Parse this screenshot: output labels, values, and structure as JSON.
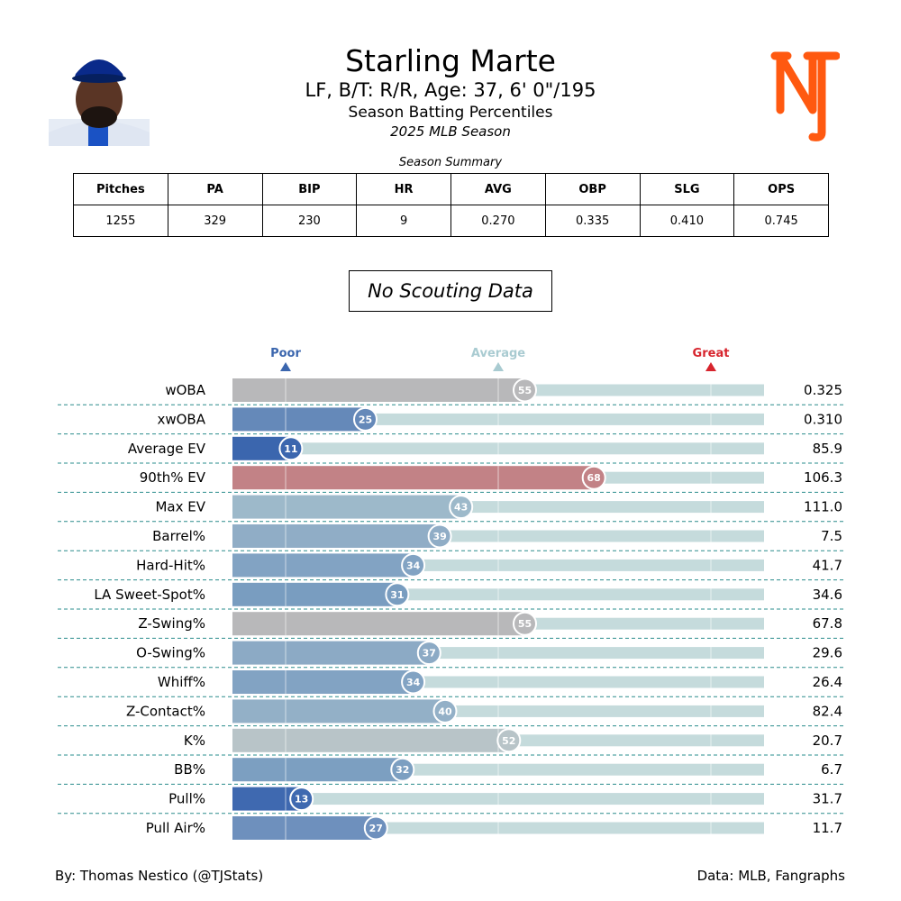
{
  "header": {
    "title": "Starling Marte",
    "subtitle": "LF, B/T: R/R, Age: 37, 6' 0\"/195",
    "subtitle2": "Season Batting Percentiles",
    "season": "2025 MLB Season"
  },
  "summary": {
    "caption": "Season Summary",
    "headers": [
      "Pitches",
      "PA",
      "BIP",
      "HR",
      "AVG",
      "OBP",
      "SLG",
      "OPS"
    ],
    "values": [
      "1255",
      "329",
      "230",
      "9",
      "0.270",
      "0.335",
      "0.410",
      "0.745"
    ]
  },
  "scouting": "No Scouting Data",
  "logo": {
    "text": "NY",
    "color": "#ff5910"
  },
  "chart_data": {
    "type": "bar",
    "orientation": "horizontal",
    "xlim": [
      0,
      100
    ],
    "markers": [
      {
        "label": "Poor",
        "at": 10,
        "color": "#3b66ae"
      },
      {
        "label": "Average",
        "at": 50,
        "color": "#a9cbd1"
      },
      {
        "label": "Great",
        "at": 90,
        "color": "#d7242d"
      }
    ],
    "track_color": "#c5dbdc",
    "rows": [
      {
        "label": "wOBA",
        "percentile": 55,
        "value": "0.325",
        "color": "#b8b8ba"
      },
      {
        "label": "xwOBA",
        "percentile": 25,
        "value": "0.310",
        "color": "#6589b9"
      },
      {
        "label": "Average EV",
        "percentile": 11,
        "value": "85.9",
        "color": "#3b66ae"
      },
      {
        "label": "90th% EV",
        "percentile": 68,
        "value": "106.3",
        "color": "#c28286"
      },
      {
        "label": "Max EV",
        "percentile": 43,
        "value": "111.0",
        "color": "#9db9ca"
      },
      {
        "label": "Barrel%",
        "percentile": 39,
        "value": "7.5",
        "color": "#90adc6"
      },
      {
        "label": "Hard-Hit%",
        "percentile": 34,
        "value": "41.7",
        "color": "#82a3c3"
      },
      {
        "label": "LA Sweet-Spot%",
        "percentile": 31,
        "value": "34.6",
        "color": "#799dc0"
      },
      {
        "label": "Z-Swing%",
        "percentile": 55,
        "value": "67.8",
        "color": "#b8b8ba"
      },
      {
        "label": "O-Swing%",
        "percentile": 37,
        "value": "29.6",
        "color": "#8caac5"
      },
      {
        "label": "Whiff%",
        "percentile": 34,
        "value": "26.4",
        "color": "#82a3c3"
      },
      {
        "label": "Z-Contact%",
        "percentile": 40,
        "value": "82.4",
        "color": "#93b0c7"
      },
      {
        "label": "K%",
        "percentile": 52,
        "value": "20.7",
        "color": "#b8c4c8"
      },
      {
        "label": "BB%",
        "percentile": 32,
        "value": "6.7",
        "color": "#7c9fc1"
      },
      {
        "label": "Pull%",
        "percentile": 13,
        "value": "31.7",
        "color": "#3f69b0"
      },
      {
        "label": "Pull Air%",
        "percentile": 27,
        "value": "11.7",
        "color": "#6e90bd"
      }
    ]
  },
  "footer": {
    "left": "By: Thomas Nestico (@TJStats)",
    "right": "Data: MLB, Fangraphs"
  }
}
